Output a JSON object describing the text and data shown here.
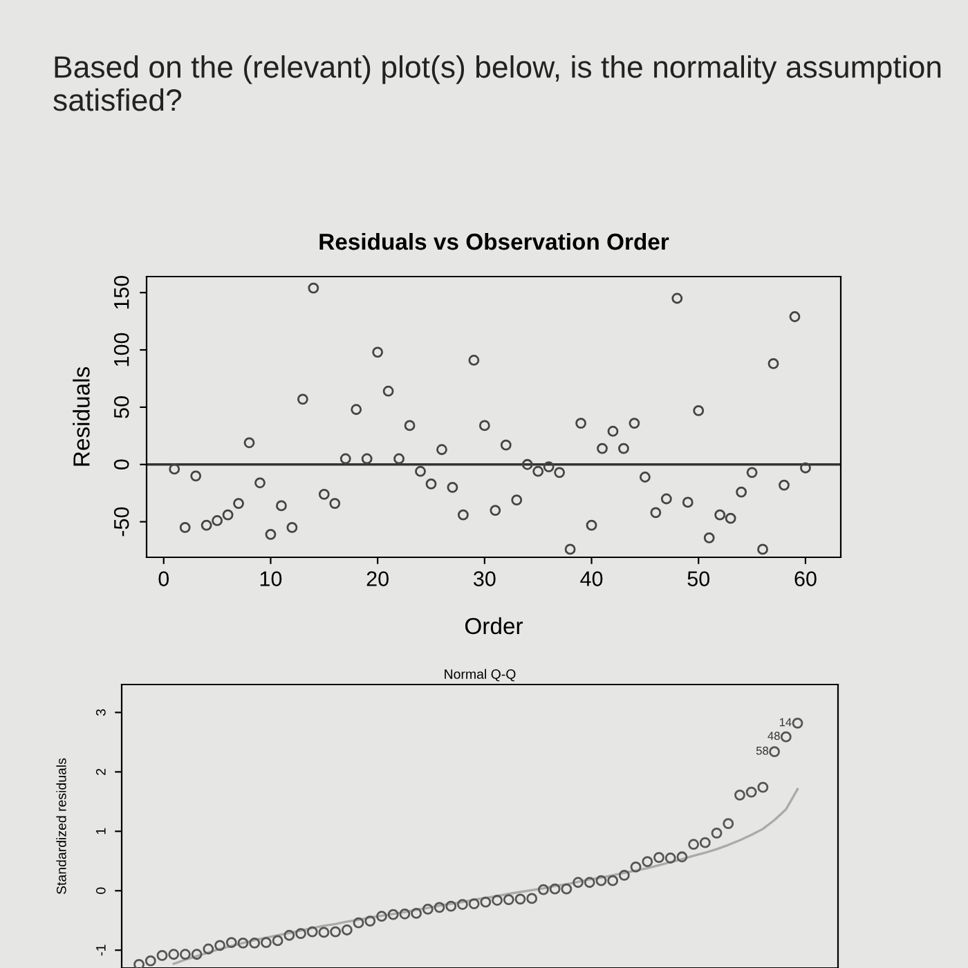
{
  "chart_data": [
    {
      "type": "scatter",
      "title": "Residuals vs Observation Order",
      "xlabel": "Order",
      "ylabel": "Residuals",
      "annotations": [
        "Based on the (relevant) plot(s) below, is the normality assumption satisfied?"
      ],
      "x": [
        1,
        2,
        3,
        4,
        5,
        6,
        7,
        8,
        9,
        10,
        11,
        12,
        13,
        14,
        15,
        16,
        17,
        18,
        19,
        20,
        21,
        22,
        23,
        24,
        25,
        26,
        27,
        28,
        29,
        30,
        31,
        32,
        33,
        34,
        35,
        36,
        37,
        38,
        39,
        40,
        41,
        42,
        43,
        44,
        45,
        46,
        47,
        48,
        49,
        50,
        51,
        52,
        53,
        54,
        55,
        56,
        57,
        58,
        59,
        60
      ],
      "series": [
        {
          "color": "#444444",
          "marker": "circle",
          "values": [
            -4,
            -55,
            -10,
            -53,
            -49,
            -44,
            -34,
            19,
            -16,
            -61,
            -36,
            -55,
            57,
            154,
            -26,
            -34,
            5,
            48,
            5,
            98,
            64,
            5,
            34,
            -6,
            -17,
            13,
            -20,
            -44,
            91,
            34,
            -40,
            17,
            -31,
            0,
            -6,
            -2,
            -7,
            -74,
            36,
            -53,
            14,
            29,
            14,
            36,
            -11,
            -42,
            -30,
            145,
            -33,
            47,
            -64,
            -44,
            -47,
            -24,
            -7,
            -74,
            88,
            -18,
            129,
            -3
          ]
        }
      ],
      "xlim": [
        -1.6,
        63.3
      ],
      "ylim": [
        -81,
        164
      ],
      "xticks": [
        0,
        10,
        20,
        30,
        40,
        50,
        60
      ],
      "yticks": [
        -50,
        0,
        50,
        100,
        150
      ],
      "ref_lines": [
        {
          "axis": "y",
          "value": 0,
          "color": "#333333"
        }
      ]
    },
    {
      "type": "scatter",
      "title": "Normal Q-Q",
      "ylabel": "Standardized residuals",
      "tick_labels": "y",
      "annotations": [
        "58",
        "48",
        "14"
      ],
      "categories": [
        null,
        null,
        null,
        null,
        null,
        null,
        null,
        null,
        null,
        null,
        null,
        null,
        null,
        null,
        null,
        null,
        null,
        null,
        null,
        null,
        null,
        null,
        null,
        null,
        null,
        null,
        null,
        null,
        null,
        null,
        null,
        null,
        null,
        null,
        null,
        null,
        null,
        null,
        null,
        null,
        null,
        null,
        null,
        null,
        null,
        null,
        null,
        null,
        null,
        null,
        null,
        null,
        null,
        null,
        null,
        null,
        null,
        null
      ],
      "series": [
        {
          "type": "scatter",
          "color": "#555555",
          "marker": "circle",
          "values": [
            -1.24,
            -1.18,
            -1.09,
            -1.07,
            -1.07,
            -1.07,
            -0.98,
            -0.92,
            -0.87,
            -0.88,
            -0.88,
            -0.87,
            -0.84,
            -0.75,
            -0.72,
            -0.69,
            -0.7,
            -0.69,
            -0.66,
            -0.54,
            -0.51,
            -0.43,
            -0.4,
            -0.39,
            -0.38,
            -0.31,
            -0.28,
            -0.26,
            -0.23,
            -0.22,
            -0.19,
            -0.16,
            -0.15,
            -0.14,
            -0.13,
            0.02,
            0.03,
            0.03,
            0.14,
            0.14,
            0.17,
            0.17,
            0.26,
            0.4,
            0.49,
            0.56,
            0.55,
            0.57,
            0.78,
            0.81,
            0.97,
            1.13,
            1.61,
            1.66,
            1.74,
            2.34,
            2.59,
            2.82
          ]
        },
        {
          "type": "line",
          "color": "#aaaaaa",
          "values": [
            null,
            null,
            null,
            -1.23,
            -1.16,
            -1.1,
            -1.04,
            -0.98,
            -0.93,
            -0.88,
            -0.83,
            -0.79,
            -0.75,
            -0.71,
            -0.67,
            -0.63,
            -0.59,
            -0.56,
            -0.52,
            -0.49,
            -0.45,
            -0.42,
            -0.39,
            -0.36,
            -0.32,
            -0.29,
            -0.25,
            -0.22,
            -0.19,
            -0.15,
            -0.12,
            -0.09,
            -0.05,
            -0.02,
            0.01,
            0.04,
            0.08,
            0.11,
            0.15,
            0.19,
            0.22,
            0.26,
            0.3,
            0.34,
            0.38,
            0.43,
            0.48,
            0.53,
            0.59,
            0.64,
            0.7,
            0.77,
            0.85,
            0.94,
            1.04,
            1.19,
            1.37,
            1.71
          ]
        }
      ],
      "ylim": [
        -1.3,
        3.47
      ],
      "yticks": [
        -1,
        0,
        1,
        2,
        3
      ]
    }
  ]
}
